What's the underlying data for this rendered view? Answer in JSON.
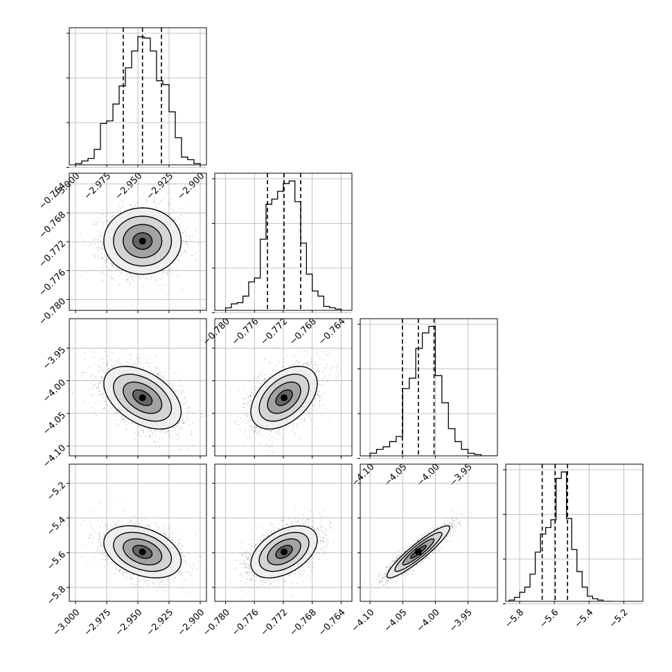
{
  "figure": {
    "type": "corner-plot",
    "background": "#ffffff"
  },
  "chart_data": [
    {
      "type": "histogram",
      "panel": "p0-0",
      "xlim": [
        -3.005,
        -2.895
      ],
      "ylim": [
        0,
        1.06
      ],
      "bin_edges": [
        -3.0,
        -2.995,
        -2.99,
        -2.985,
        -2.98,
        -2.975,
        -2.97,
        -2.965,
        -2.96,
        -2.955,
        -2.95,
        -2.945,
        -2.94,
        -2.935,
        -2.93,
        -2.925,
        -2.92,
        -2.915,
        -2.91,
        -2.905,
        -2.9
      ],
      "counts": [
        0.01,
        0.03,
        0.05,
        0.12,
        0.32,
        0.34,
        0.47,
        0.61,
        0.75,
        0.88,
        0.99,
        0.98,
        0.88,
        0.65,
        0.62,
        0.41,
        0.21,
        0.06,
        0.04,
        0.01
      ],
      "quantiles": [
        -2.9617,
        -2.9463,
        -2.9311
      ],
      "xticks": [
        -3.0,
        -2.975,
        -2.95,
        -2.925,
        -2.9
      ],
      "xtick_labels": [
        "−3.000",
        "−2.975",
        "−2.950",
        "−2.925",
        "−2.900"
      ],
      "show_xtick_labels": true,
      "ytick_count": 4,
      "grid": true
    },
    {
      "type": "histogram",
      "panel": "p1-1",
      "xlim": [
        -0.7815,
        -0.7625
      ],
      "ylim": [
        0,
        1.06
      ],
      "bin_edges": [
        -0.78,
        -0.7792,
        -0.7784,
        -0.7776,
        -0.7768,
        -0.776,
        -0.7752,
        -0.7744,
        -0.7736,
        -0.7728,
        -0.772,
        -0.7712,
        -0.7704,
        -0.7696,
        -0.7688,
        -0.768,
        -0.7672,
        -0.7664,
        -0.7656,
        -0.7648,
        -0.764
      ],
      "counts": [
        0.02,
        0.05,
        0.06,
        0.11,
        0.22,
        0.25,
        0.55,
        0.82,
        0.86,
        0.92,
        0.98,
        1.0,
        0.84,
        0.52,
        0.28,
        0.15,
        0.11,
        0.03,
        0.02,
        0.01
      ],
      "quantiles": [
        -0.7742,
        -0.7719,
        -0.7696
      ],
      "xticks": [
        -0.78,
        -0.776,
        -0.772,
        -0.768,
        -0.764
      ],
      "xtick_labels": [
        "−0.780",
        "−0.776",
        "−0.772",
        "−0.768",
        "−0.764"
      ],
      "show_xtick_labels": true,
      "ytick_count": 4,
      "grid": true
    },
    {
      "type": "histogram",
      "panel": "p2-2",
      "xlim": [
        -4.115,
        -3.905
      ],
      "ylim": [
        0,
        1.06
      ],
      "bin_edges": [
        -4.1,
        -4.09,
        -4.08,
        -4.07,
        -4.06,
        -4.05,
        -4.04,
        -4.03,
        -4.02,
        -4.01,
        -4.0,
        -3.99,
        -3.98,
        -3.97,
        -3.96,
        -3.95,
        -3.94,
        -3.93,
        -3.92,
        -3.91,
        -3.9
      ],
      "counts": [
        0.02,
        0.05,
        0.07,
        0.11,
        0.15,
        0.52,
        0.6,
        0.83,
        0.95,
        1.0,
        0.62,
        0.41,
        0.21,
        0.11,
        0.05,
        0.02,
        0.01,
        0.0,
        0.0,
        0.0
      ],
      "quantiles": [
        -4.0505,
        -4.026,
        -4.002
      ],
      "xticks": [
        -4.1,
        -4.05,
        -4.0,
        -3.95
      ],
      "xtick_labels": [
        "−4.10",
        "−4.05",
        "−4.00",
        "−3.95"
      ],
      "show_xtick_labels": true,
      "ytick_count": 4,
      "grid": true
    },
    {
      "type": "histogram",
      "panel": "p3-3",
      "xlim": [
        -5.88,
        -5.09
      ],
      "ylim": [
        0,
        1.06
      ],
      "bin_edges": [
        -5.86,
        -5.83,
        -5.8,
        -5.77,
        -5.74,
        -5.71,
        -5.68,
        -5.65,
        -5.62,
        -5.59,
        -5.56,
        -5.53,
        -5.5,
        -5.47,
        -5.44,
        -5.41,
        -5.38,
        -5.35,
        -5.32,
        -5.29,
        -5.26
      ],
      "counts": [
        0.01,
        0.03,
        0.07,
        0.11,
        0.21,
        0.38,
        0.52,
        0.57,
        0.63,
        0.95,
        1.0,
        0.64,
        0.4,
        0.23,
        0.11,
        0.04,
        0.02,
        0.01,
        0.0,
        0.0
      ],
      "quantiles": [
        -5.67,
        -5.595,
        -5.524
      ],
      "xticks": [
        -5.8,
        -5.6,
        -5.4,
        -5.2
      ],
      "xtick_labels": [
        "−5.8",
        "−5.6",
        "−5.4",
        "−5.2"
      ],
      "show_xtick_labels": true,
      "ytick_count": 4,
      "grid": true
    },
    {
      "type": "scatter",
      "panel": "p1-0",
      "x_param": 0,
      "y_param": 1,
      "xlim": [
        -3.005,
        -2.895
      ],
      "ylim": [
        -0.7815,
        -0.7625
      ],
      "mean": [
        -2.9463,
        -0.7719
      ],
      "sd": [
        0.0155,
        0.0023
      ],
      "corr": 0.0,
      "yticks": [
        -0.764,
        -0.768,
        -0.772,
        -0.776,
        -0.78
      ],
      "ytick_labels": [
        "−0.764",
        "−0.768",
        "−0.772",
        "−0.776",
        "−0.780"
      ],
      "show_xtick_labels": false,
      "show_ytick_labels": true,
      "contour_levels_sigma": [
        0.5,
        1.0,
        1.5,
        2.0
      ],
      "grid": true
    },
    {
      "type": "scatter",
      "panel": "p2-0",
      "x_param": 0,
      "y_param": 2,
      "xlim": [
        -3.005,
        -2.895
      ],
      "ylim": [
        -4.115,
        -3.905
      ],
      "mean": [
        -2.9463,
        -4.026
      ],
      "sd": [
        0.0155,
        0.024
      ],
      "corr": -0.45,
      "yticks": [
        -3.95,
        -4.0,
        -4.05,
        -4.1
      ],
      "ytick_labels": [
        "−3.95",
        "−4.00",
        "−4.05",
        "−4.10"
      ],
      "show_xtick_labels": false,
      "show_ytick_labels": true,
      "contour_levels_sigma": [
        0.5,
        1.0,
        1.5,
        2.0
      ],
      "grid": true
    },
    {
      "type": "scatter",
      "panel": "p2-1",
      "x_param": 1,
      "y_param": 2,
      "xlim": [
        -0.7815,
        -0.7625
      ],
      "ylim": [
        -4.115,
        -3.905
      ],
      "mean": [
        -0.7719,
        -4.026
      ],
      "sd": [
        0.0023,
        0.024
      ],
      "corr": 0.45,
      "show_xtick_labels": false,
      "show_ytick_labels": false,
      "contour_levels_sigma": [
        0.5,
        1.0,
        1.5,
        2.0
      ],
      "grid": true
    },
    {
      "type": "scatter",
      "panel": "p3-0",
      "x_param": 0,
      "y_param": 3,
      "xlim": [
        -3.005,
        -2.895
      ],
      "ylim": [
        -5.88,
        -5.09
      ],
      "mean": [
        -2.9463,
        -5.595
      ],
      "sd": [
        0.0155,
        0.075
      ],
      "corr": -0.35,
      "yticks": [
        -5.2,
        -5.4,
        -5.6,
        -5.8
      ],
      "ytick_labels": [
        "−5.2",
        "−5.4",
        "−5.6",
        "−5.8"
      ],
      "xticks": [
        -3.0,
        -2.975,
        -2.95,
        -2.925,
        -2.9
      ],
      "xtick_labels": [
        "−3.000",
        "−2.975",
        "−2.950",
        "−2.925",
        "−2.900"
      ],
      "show_xtick_labels": true,
      "show_ytick_labels": true,
      "contour_levels_sigma": [
        0.5,
        1.0,
        1.5,
        2.0
      ],
      "grid": true
    },
    {
      "type": "scatter",
      "panel": "p3-1",
      "x_param": 1,
      "y_param": 3,
      "xlim": [
        -0.7815,
        -0.7625
      ],
      "ylim": [
        -5.88,
        -5.09
      ],
      "mean": [
        -0.7719,
        -5.595
      ],
      "sd": [
        0.0023,
        0.075
      ],
      "corr": 0.45,
      "xticks": [
        -0.78,
        -0.776,
        -0.772,
        -0.768,
        -0.764
      ],
      "xtick_labels": [
        "−0.780",
        "−0.776",
        "−0.772",
        "−0.768",
        "−0.764"
      ],
      "show_xtick_labels": true,
      "show_ytick_labels": false,
      "contour_levels_sigma": [
        0.5,
        1.0,
        1.5,
        2.0
      ],
      "grid": true
    },
    {
      "type": "scatter",
      "panel": "p3-2",
      "x_param": 2,
      "y_param": 3,
      "xlim": [
        -4.115,
        -3.905
      ],
      "ylim": [
        -5.88,
        -5.09
      ],
      "mean": [
        -4.026,
        -5.595
      ],
      "sd": [
        0.024,
        0.075
      ],
      "corr": 0.92,
      "xticks": [
        -4.1,
        -4.05,
        -4.0,
        -3.95
      ],
      "xtick_labels": [
        "−4.10",
        "−4.05",
        "−4.00",
        "−3.95"
      ],
      "show_xtick_labels": true,
      "show_ytick_labels": false,
      "contour_levels_sigma": [
        0.5,
        1.0,
        1.5,
        2.0
      ],
      "grid": true
    }
  ]
}
